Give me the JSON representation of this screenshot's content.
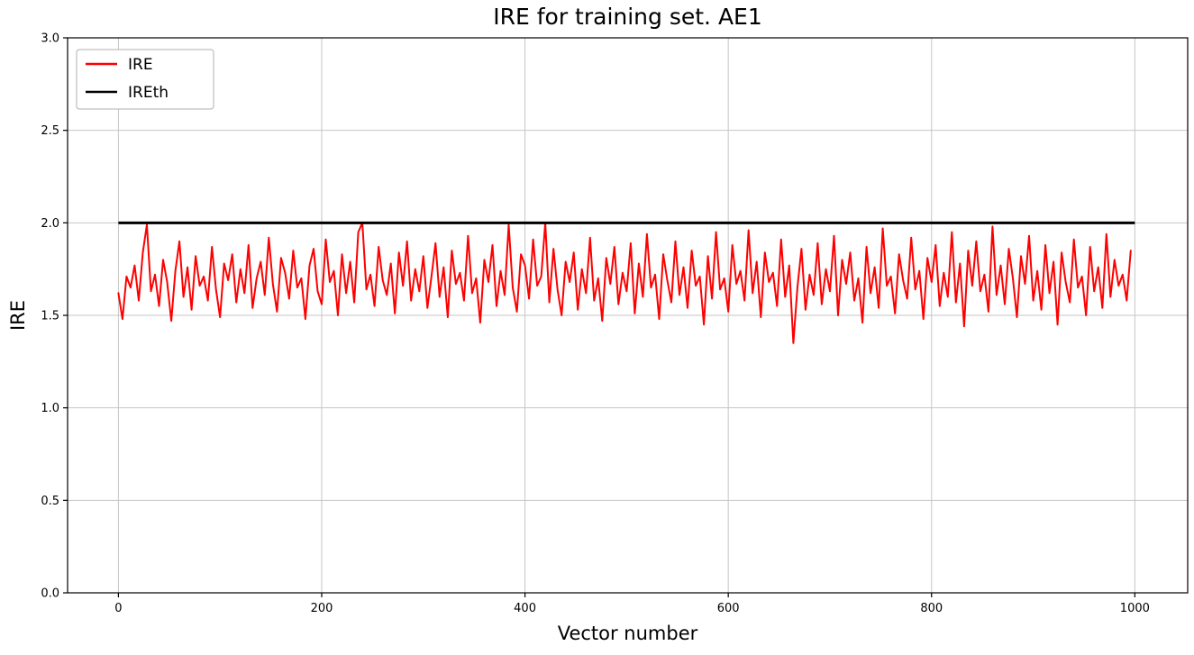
{
  "chart_data": {
    "type": "line",
    "title": "IRE for training set. AE1",
    "xlabel": "Vector number",
    "ylabel": "IRE",
    "xlim": [
      -50,
      1052
    ],
    "ylim": [
      0.0,
      3.0
    ],
    "grid": true,
    "legend_position": "upper left",
    "colors": {
      "ire_line": "#ff0000",
      "ireth_line": "#000000",
      "grid": "#c6c6c6",
      "spine": "#000000",
      "legend_edge": "#b0b0b0",
      "background": "#ffffff"
    },
    "xticks": [
      {
        "value": 0,
        "label": "0"
      },
      {
        "value": 200,
        "label": "200"
      },
      {
        "value": 400,
        "label": "400"
      },
      {
        "value": 600,
        "label": "600"
      },
      {
        "value": 800,
        "label": "800"
      },
      {
        "value": 1000,
        "label": "1000"
      }
    ],
    "yticks": [
      {
        "value": 0.0,
        "label": "0.0"
      },
      {
        "value": 0.5,
        "label": "0.5"
      },
      {
        "value": 1.0,
        "label": "1.0"
      },
      {
        "value": 1.5,
        "label": "1.5"
      },
      {
        "value": 2.0,
        "label": "2.0"
      },
      {
        "value": 2.5,
        "label": "2.5"
      },
      {
        "value": 3.0,
        "label": "3.0"
      }
    ],
    "series": [
      {
        "name": "IRE",
        "color": "#ff0000",
        "x_start": 0,
        "x_step": 4,
        "values": [
          1.62,
          1.48,
          1.71,
          1.65,
          1.77,
          1.58,
          1.84,
          1.99,
          1.63,
          1.72,
          1.55,
          1.8,
          1.68,
          1.47,
          1.74,
          1.9,
          1.6,
          1.76,
          1.53,
          1.82,
          1.66,
          1.71,
          1.58,
          1.87,
          1.64,
          1.49,
          1.78,
          1.69,
          1.83,
          1.57,
          1.75,
          1.62,
          1.88,
          1.54,
          1.7,
          1.79,
          1.61,
          1.92,
          1.67,
          1.52,
          1.81,
          1.73,
          1.59,
          1.85,
          1.65,
          1.7,
          1.48,
          1.77,
          1.86,
          1.63,
          1.56,
          1.91,
          1.68,
          1.74,
          1.5,
          1.83,
          1.62,
          1.79,
          1.57,
          1.95,
          2.0,
          1.64,
          1.72,
          1.55,
          1.87,
          1.69,
          1.61,
          1.78,
          1.51,
          1.84,
          1.66,
          1.9,
          1.58,
          1.75,
          1.63,
          1.82,
          1.54,
          1.71,
          1.89,
          1.6,
          1.76,
          1.49,
          1.85,
          1.67,
          1.73,
          1.58,
          1.93,
          1.62,
          1.7,
          1.46,
          1.8,
          1.68,
          1.88,
          1.55,
          1.74,
          1.61,
          1.99,
          1.65,
          1.52,
          1.83,
          1.77,
          1.59,
          1.91,
          1.66,
          1.71,
          2.0,
          1.57,
          1.86,
          1.64,
          1.5,
          1.79,
          1.68,
          1.84,
          1.53,
          1.75,
          1.62,
          1.92,
          1.58,
          1.7,
          1.47,
          1.81,
          1.67,
          1.87,
          1.56,
          1.73,
          1.63,
          1.89,
          1.51,
          1.78,
          1.6,
          1.94,
          1.65,
          1.72,
          1.48,
          1.83,
          1.69,
          1.57,
          1.9,
          1.61,
          1.76,
          1.54,
          1.85,
          1.66,
          1.71,
          1.45,
          1.82,
          1.59,
          1.95,
          1.64,
          1.7,
          1.52,
          1.88,
          1.67,
          1.74,
          1.58,
          1.96,
          1.62,
          1.79,
          1.49,
          1.84,
          1.68,
          1.73,
          1.55,
          1.91,
          1.6,
          1.77,
          1.35,
          1.65,
          1.86,
          1.53,
          1.72,
          1.61,
          1.89,
          1.56,
          1.75,
          1.63,
          1.93,
          1.5,
          1.8,
          1.67,
          1.84,
          1.58,
          1.7,
          1.46,
          1.87,
          1.62,
          1.76,
          1.54,
          1.97,
          1.66,
          1.71,
          1.51,
          1.83,
          1.69,
          1.59,
          1.92,
          1.64,
          1.74,
          1.48,
          1.81,
          1.68,
          1.88,
          1.55,
          1.73,
          1.6,
          1.95,
          1.57,
          1.78,
          1.44,
          1.85,
          1.66,
          1.9,
          1.63,
          1.72,
          1.52,
          1.98,
          1.61,
          1.77,
          1.56,
          1.86,
          1.7,
          1.49,
          1.82,
          1.67,
          1.93,
          1.58,
          1.74,
          1.53,
          1.88,
          1.62,
          1.79,
          1.45,
          1.84,
          1.68,
          1.57,
          1.91,
          1.65,
          1.71,
          1.5,
          1.87,
          1.63,
          1.76,
          1.54,
          1.94,
          1.6,
          1.8,
          1.66,
          1.72,
          1.58,
          1.85
        ]
      },
      {
        "name": "IREth",
        "color": "#000000",
        "constant": 2.0,
        "x_range": [
          0,
          1000
        ]
      }
    ]
  }
}
